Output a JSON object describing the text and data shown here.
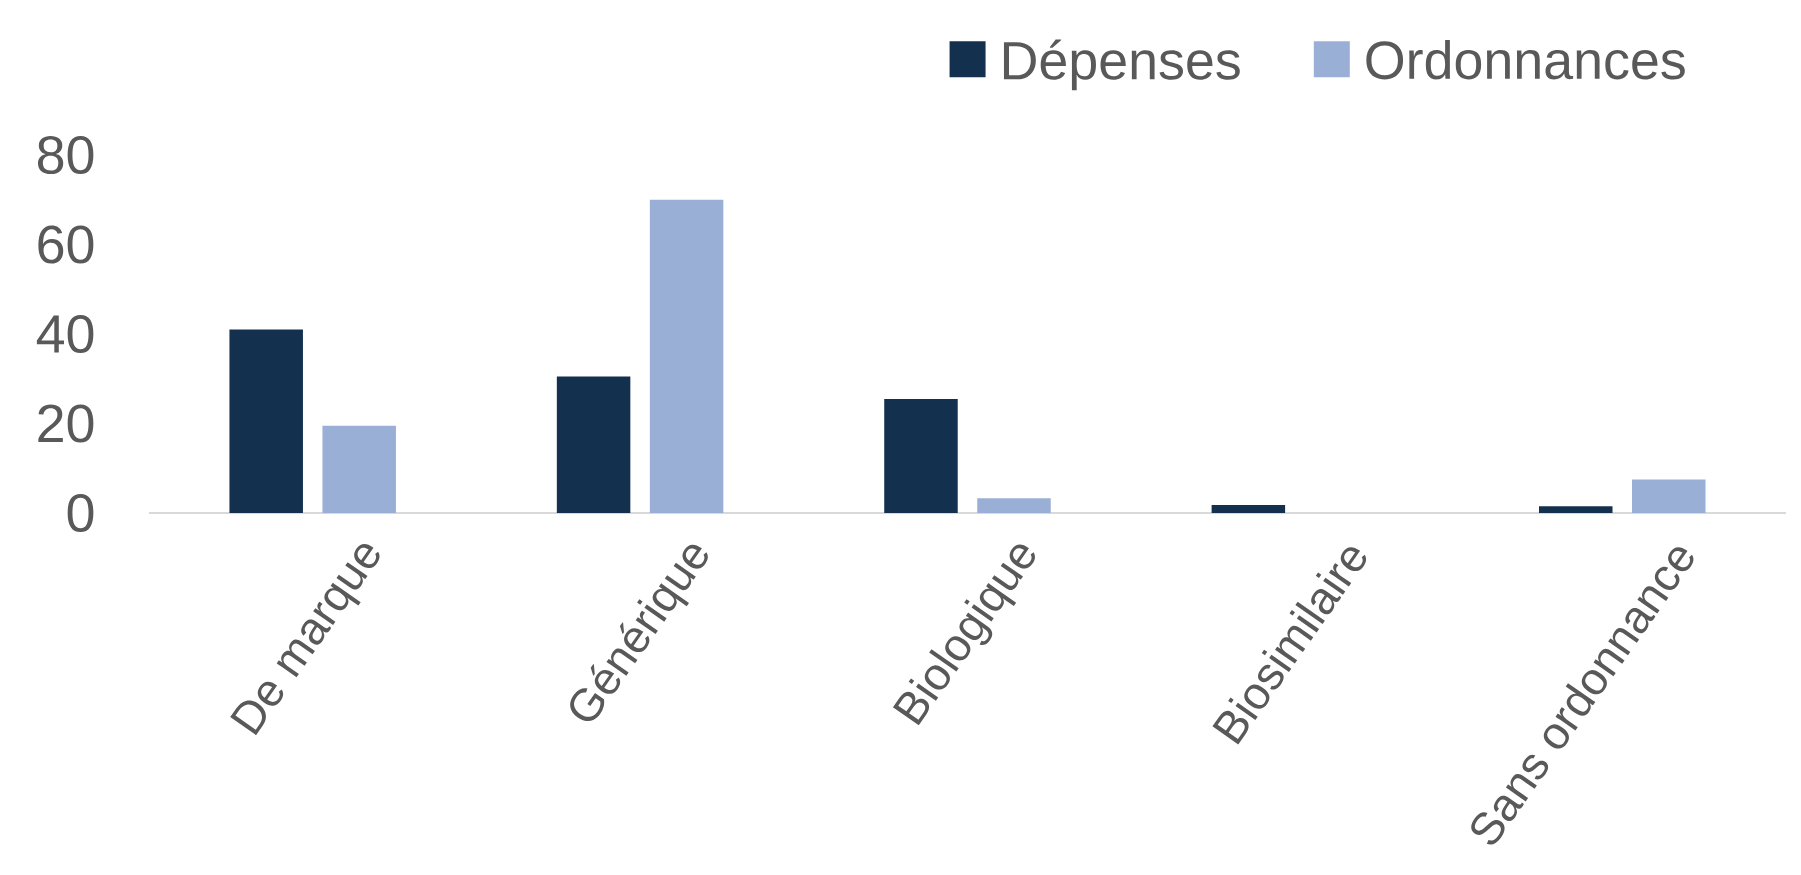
{
  "chart_data": {
    "type": "bar",
    "categories": [
      "De marque",
      "Générique",
      "Biologique",
      "Biosimilaire",
      "Sans ordonnance"
    ],
    "series": [
      {
        "name": "Dépenses",
        "color": "#14304f",
        "values": [
          41,
          30.5,
          25.5,
          1.8,
          1.5
        ]
      },
      {
        "name": "Ordonnances",
        "color": "#9aafd6",
        "values": [
          19.5,
          70,
          3.3,
          0,
          7.5
        ]
      }
    ],
    "ylim": [
      0,
      80
    ],
    "yticks": [
      0,
      20,
      40,
      60,
      80
    ],
    "legend": "top right"
  }
}
